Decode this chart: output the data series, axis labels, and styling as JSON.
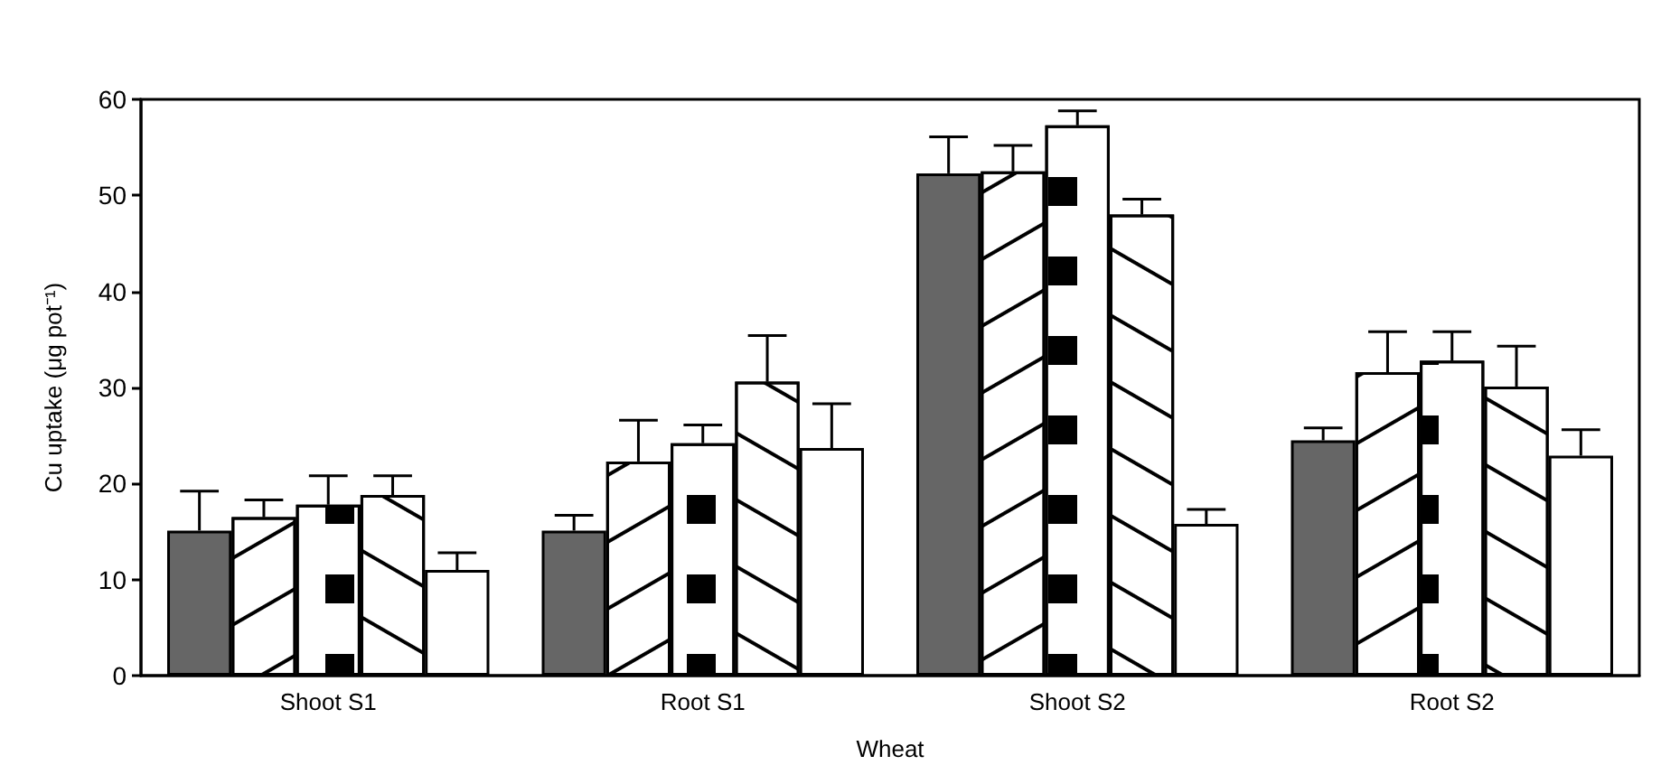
{
  "chart_data": {
    "type": "bar",
    "xlabel": "Wheat",
    "ylabel": "Cu uptake (μg pot⁻¹)",
    "categories": [
      "Shoot S1",
      "Root S1",
      "Shoot S2",
      "Root S2"
    ],
    "series": [
      {
        "color": "#666666",
        "values": [
          15.1,
          15.1,
          52.3,
          24.5
        ],
        "errors": [
          4.1,
          1.6,
          3.8,
          1.3
        ]
      },
      {
        "color": "#ffffff",
        "values": [
          16.5,
          22.3,
          52.5,
          31.6
        ],
        "errors": [
          1.8,
          4.3,
          2.7,
          4.2
        ]
      },
      {
        "color": "#ffffff",
        "values": [
          17.8,
          24.2,
          57.3,
          32.8
        ],
        "errors": [
          3.0,
          1.9,
          1.5,
          3.0
        ]
      },
      {
        "color": "#ffffff",
        "values": [
          18.8,
          30.6,
          48.0,
          30.1
        ],
        "errors": [
          2.0,
          4.8,
          1.6,
          4.2
        ]
      },
      {
        "color": "#ffffff",
        "values": [
          11.0,
          23.7,
          15.8,
          22.9
        ],
        "errors": [
          1.8,
          4.6,
          1.5,
          2.7
        ]
      }
    ],
    "ylim": [
      0,
      60
    ],
    "yticks": [
      0,
      10,
      20,
      30,
      40,
      50,
      60
    ]
  }
}
